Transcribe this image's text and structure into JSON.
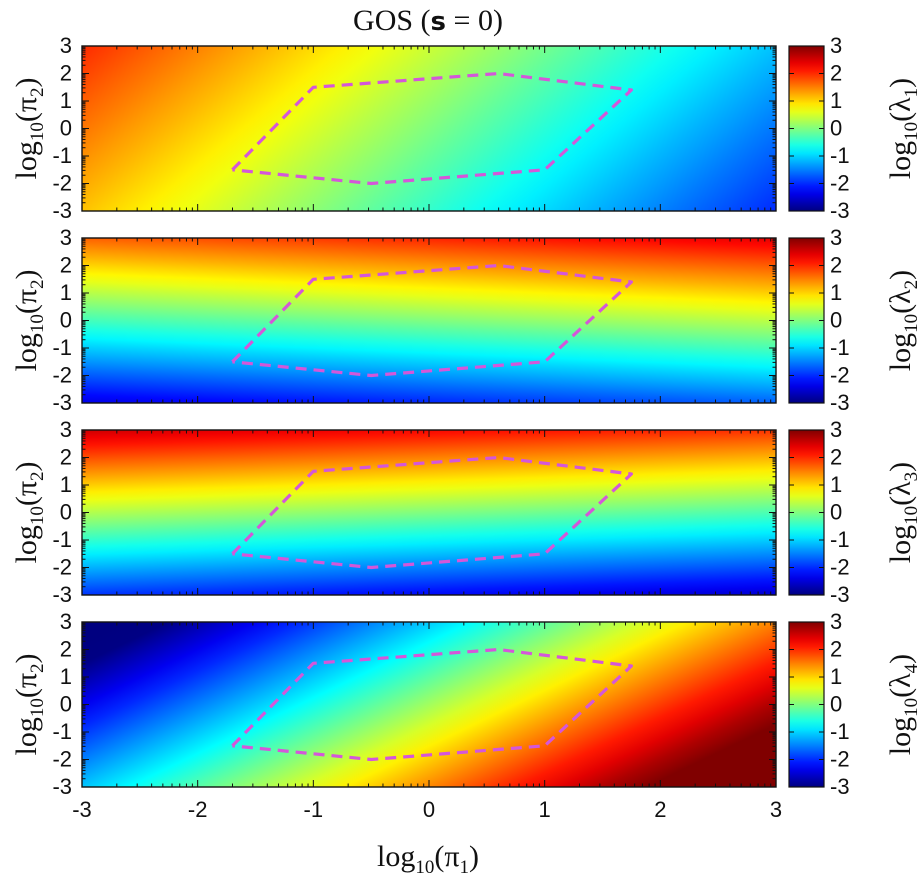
{
  "figure_title": {
    "prefix": "GOS (",
    "symbol": "s",
    "suffix": " = 0)"
  },
  "colormap": "jet",
  "chart_data": [
    {
      "type": "heatmap",
      "panel": 1,
      "xlabel": "log10(π1)",
      "ylabel": "log10(π2)",
      "colorbar_label": "log10(λ1)",
      "xlim": [
        -3,
        3
      ],
      "ylim": [
        -3,
        3
      ],
      "clim": [
        -3,
        3
      ],
      "x_ticks": [
        "-3",
        "-2",
        "-1",
        "0",
        "1",
        "2",
        "3"
      ],
      "y_ticks": [
        "3",
        "2",
        "1",
        "0",
        "-1",
        "-2",
        "-3"
      ],
      "colorbar_ticks": [
        "3",
        "2",
        "1",
        "0",
        "-1",
        "-2",
        "-3"
      ],
      "field": {
        "c0": 0.0,
        "cx": -0.52,
        "cy": 0.15
      },
      "x_ticklabels_shown": false
    },
    {
      "type": "heatmap",
      "panel": 2,
      "xlabel": "log10(π1)",
      "ylabel": "log10(π2)",
      "colorbar_label": "log10(λ2)",
      "xlim": [
        -3,
        3
      ],
      "ylim": [
        -3,
        3
      ],
      "clim": [
        -3,
        3
      ],
      "x_ticks": [
        "-3",
        "-2",
        "-1",
        "0",
        "1",
        "2",
        "3"
      ],
      "y_ticks": [
        "3",
        "2",
        "1",
        "0",
        "-1",
        "-2",
        "-3"
      ],
      "colorbar_ticks": [
        "3",
        "2",
        "1",
        "0",
        "-1",
        "-2",
        "-3"
      ],
      "field": {
        "c0": 0.0,
        "cx": 0.12,
        "cy": 0.68
      },
      "x_ticklabels_shown": false
    },
    {
      "type": "heatmap",
      "panel": 3,
      "xlabel": "log10(π1)",
      "ylabel": "log10(π2)",
      "colorbar_label": "log10(λ3)",
      "xlim": [
        -3,
        3
      ],
      "ylim": [
        -3,
        3
      ],
      "clim": [
        -3,
        3
      ],
      "x_ticks": [
        "-3",
        "-2",
        "-1",
        "0",
        "1",
        "2",
        "3"
      ],
      "y_ticks": [
        "3",
        "2",
        "1",
        "0",
        "-1",
        "-2",
        "-3"
      ],
      "colorbar_ticks": [
        "3",
        "2",
        "1",
        "0",
        "-1",
        "-2",
        "-3"
      ],
      "field": {
        "c0": 0.0,
        "cx": -0.1,
        "cy": 0.75
      },
      "x_ticklabels_shown": false
    },
    {
      "type": "heatmap",
      "panel": 4,
      "xlabel": "log10(π1)",
      "ylabel": "log10(π2)",
      "colorbar_label": "log10(λ4)",
      "xlim": [
        -3,
        3
      ],
      "ylim": [
        -3,
        3
      ],
      "clim": [
        -3,
        3
      ],
      "x_ticks": [
        "-3",
        "-2",
        "-1",
        "0",
        "1",
        "2",
        "3"
      ],
      "y_ticks": [
        "3",
        "2",
        "1",
        "0",
        "-1",
        "-2",
        "-3"
      ],
      "colorbar_ticks": [
        "3",
        "2",
        "1",
        "0",
        "-1",
        "-2",
        "-3"
      ],
      "field": {
        "c0": 0.2,
        "cx": 0.85,
        "cy": -0.42
      },
      "x_ticklabels_shown": true
    }
  ],
  "boundary_polygon": {
    "style": "dashed",
    "color": "#d457d9",
    "points": [
      [
        -1.7,
        -1.5
      ],
      [
        -1.0,
        1.5
      ],
      [
        0.6,
        2.0
      ],
      [
        1.75,
        1.4
      ],
      [
        1.0,
        -1.5
      ],
      [
        -0.5,
        -2.0
      ],
      [
        -1.7,
        -1.5
      ]
    ]
  },
  "shared_xlabel": {
    "base": "log",
    "sub": "10",
    "rest": "(π",
    "sub2": "1",
    "close": ")"
  }
}
